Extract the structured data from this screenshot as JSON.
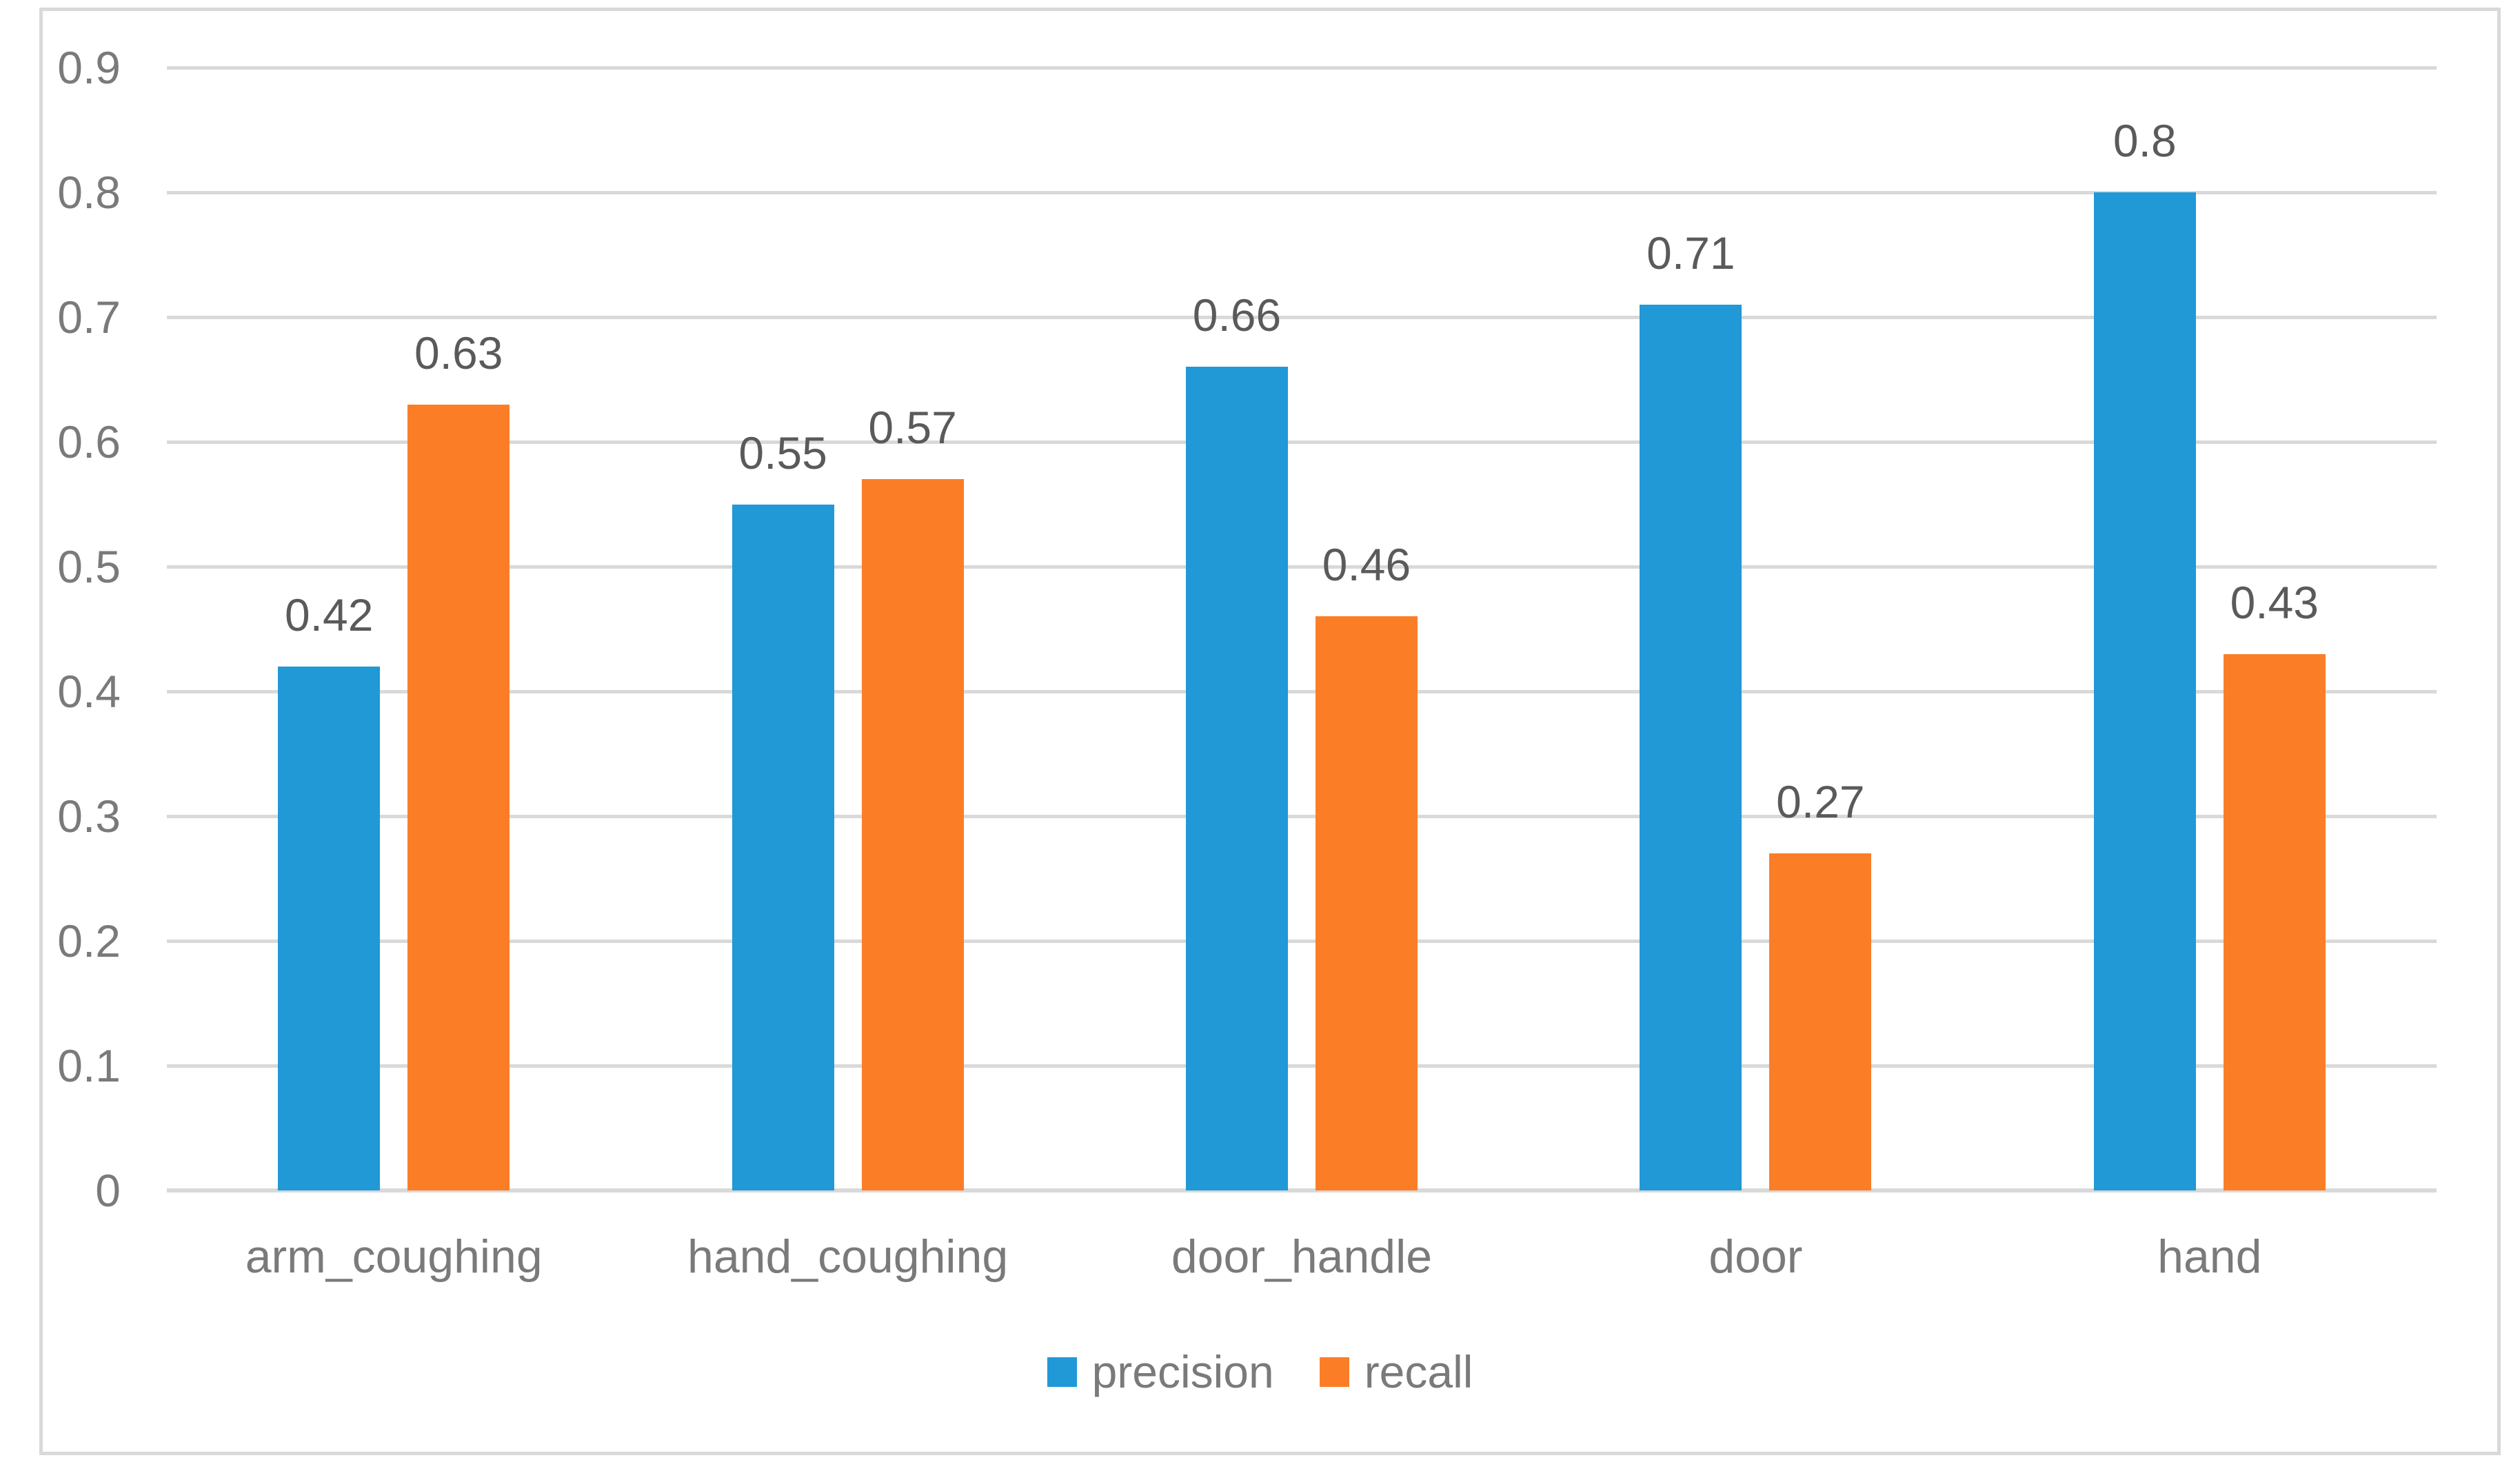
{
  "figure": {
    "background": "#FFFFFF",
    "border_color": "#D9D9D9"
  },
  "chart_data": {
    "type": "bar",
    "title": "",
    "xlabel": "",
    "ylabel": "",
    "categories": [
      "arm_coughing",
      "hand_coughing",
      "door_handle",
      "door",
      "hand"
    ],
    "series": [
      {
        "name": "precision",
        "color": "#2099D6",
        "values": [
          0.42,
          0.55,
          0.66,
          0.71,
          0.8
        ],
        "labels": [
          "0.42",
          "0.55",
          "0.66",
          "0.71",
          "0.8"
        ]
      },
      {
        "name": "recall",
        "color": "#FB7E27",
        "values": [
          0.63,
          0.57,
          0.46,
          0.27,
          0.43
        ],
        "labels": [
          "0.63",
          "0.57",
          "0.46",
          "0.27",
          "0.43"
        ]
      }
    ],
    "ylim": [
      0,
      0.9
    ],
    "yticks": [
      0,
      0.1,
      0.2,
      0.3,
      0.4,
      0.5,
      0.6,
      0.7,
      0.8,
      0.9
    ],
    "ytick_labels": [
      "0",
      "0.1",
      "0.2",
      "0.3",
      "0.4",
      "0.5",
      "0.6",
      "0.7",
      "0.8",
      "0.9"
    ],
    "grid": true,
    "gridline_color": "#D9D9D9",
    "axis_line_color": "#D9D9D9",
    "tick_text_color": "#7A7A7A",
    "category_text_color": "#7A7A7A",
    "data_label_color": "#5A5A5A",
    "legend_position": "bottom",
    "legend_text_color": "#7A7A7A",
    "legend_labels": [
      "precision",
      "recall"
    ]
  }
}
